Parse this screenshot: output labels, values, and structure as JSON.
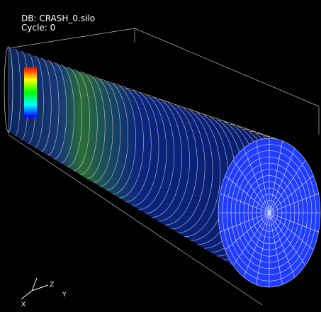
{
  "header": {
    "database": "DB: CRASH_0.silo",
    "cycle": "Cycle: 0"
  },
  "triad": {
    "x": "X",
    "y": "Y",
    "z": "Z"
  }
}
